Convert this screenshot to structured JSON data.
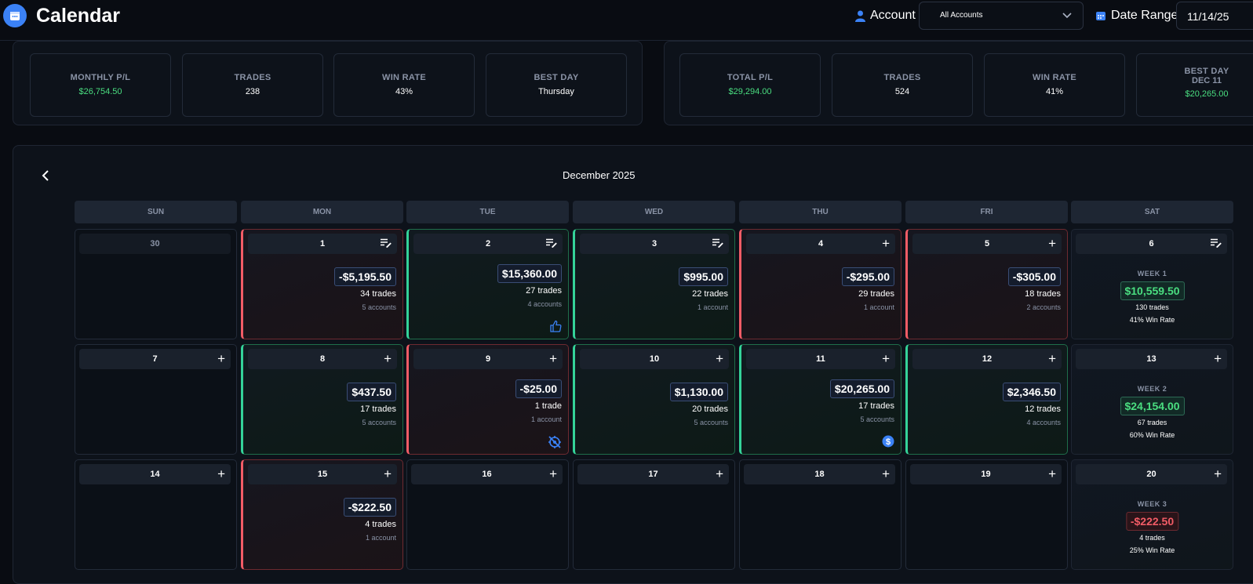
{
  "header": {
    "title": "Calendar",
    "account_label": "Account",
    "account_value": "All Accounts",
    "date_range_label": "Date Range",
    "date_range_value": "11/14/25"
  },
  "month_stats": {
    "monthly_pl_label": "MONTHLY P/L",
    "monthly_pl": "$26,754.50",
    "trades_label": "TRADES",
    "trades": "238",
    "win_rate_label": "WIN RATE",
    "win_rate": "43%",
    "best_day_label": "BEST DAY",
    "best_day": "Thursday"
  },
  "range_stats": {
    "total_pl_label": "TOTAL P/L",
    "total_pl": "$29,294.00",
    "trades_label": "TRADES",
    "trades": "524",
    "win_rate_label": "WIN RATE",
    "win_rate": "41%",
    "best_day_label": "BEST DAY",
    "best_day_date": "DEC 11",
    "best_day": "$20,265.00"
  },
  "calendar": {
    "month": "December 2025",
    "weekdays": [
      "SUN",
      "MON",
      "TUE",
      "WED",
      "THU",
      "FRI",
      "SAT"
    ],
    "days": [
      {
        "day": "30",
        "pnl": "",
        "trades": "",
        "accounts": ""
      },
      {
        "day": "1",
        "pnl": "-$5,195.50",
        "trades": "34 trades",
        "accounts": "5 accounts"
      },
      {
        "day": "2",
        "pnl": "$15,360.00",
        "trades": "27 trades",
        "accounts": "4 accounts"
      },
      {
        "day": "3",
        "pnl": "$995.00",
        "trades": "22 trades",
        "accounts": "1 account"
      },
      {
        "day": "4",
        "pnl": "-$295.00",
        "trades": "29 trades",
        "accounts": "1 account"
      },
      {
        "day": "5",
        "pnl": "-$305.00",
        "trades": "18 trades",
        "accounts": "2 accounts"
      },
      {
        "day": "6",
        "week_label": "WEEK 1",
        "week_pnl": "$10,559.50",
        "week_trades": "130 trades",
        "week_win_rate": "41% Win Rate"
      },
      {
        "day": "7",
        "pnl": "",
        "trades": "",
        "accounts": ""
      },
      {
        "day": "8",
        "pnl": "$437.50",
        "trades": "17 trades",
        "accounts": "5 accounts"
      },
      {
        "day": "9",
        "pnl": "-$25.00",
        "trades": "1 trade",
        "accounts": "1 account"
      },
      {
        "day": "10",
        "pnl": "$1,130.00",
        "trades": "20 trades",
        "accounts": "5 accounts"
      },
      {
        "day": "11",
        "pnl": "$20,265.00",
        "trades": "17 trades",
        "accounts": "5 accounts"
      },
      {
        "day": "12",
        "pnl": "$2,346.50",
        "trades": "12 trades",
        "accounts": "4 accounts"
      },
      {
        "day": "13",
        "week_label": "WEEK 2",
        "week_pnl": "$24,154.00",
        "week_trades": "67 trades",
        "week_win_rate": "60% Win Rate"
      },
      {
        "day": "14",
        "pnl": "",
        "trades": "",
        "accounts": ""
      },
      {
        "day": "15",
        "pnl": "-$222.50",
        "trades": "4 trades",
        "accounts": "1 account"
      },
      {
        "day": "16",
        "pnl": "",
        "trades": "",
        "accounts": ""
      },
      {
        "day": "17",
        "pnl": "",
        "trades": "",
        "accounts": ""
      },
      {
        "day": "18",
        "pnl": "",
        "trades": "",
        "accounts": ""
      },
      {
        "day": "19",
        "pnl": "",
        "trades": "",
        "accounts": ""
      },
      {
        "day": "20",
        "week_label": "WEEK 3",
        "week_pnl": "-$222.50",
        "week_trades": "4 trades",
        "week_win_rate": "25% Win Rate"
      }
    ]
  },
  "colors": {
    "accent": "#3b82f6",
    "profit": "#4ade80",
    "loss": "#f25c66"
  }
}
